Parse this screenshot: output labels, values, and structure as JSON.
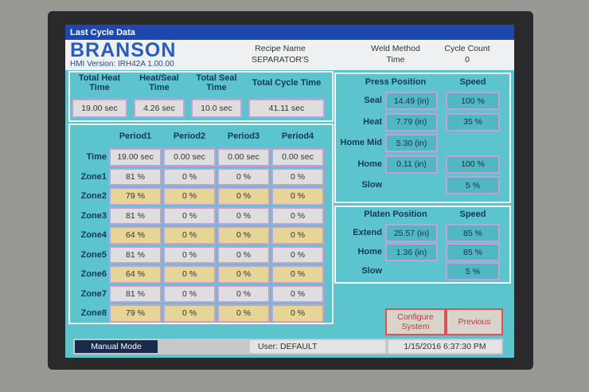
{
  "title_bar": "Last Cycle Data",
  "header": {
    "logo": "BRANSON",
    "hmi_version": "HMI Version: IRH42A 1.00.00",
    "recipe": {
      "label": "Recipe Name",
      "value": "SEPARATOR'S"
    },
    "weld_method": {
      "label": "Weld Method",
      "value": "Time"
    },
    "cycle_count": {
      "label": "Cycle Count",
      "value": "0"
    }
  },
  "totals": [
    {
      "label": "Total Heat Time",
      "value": "19.00 sec"
    },
    {
      "label": "Heat/Seal Time",
      "value": "4.26 sec"
    },
    {
      "label": "Total Seal Time",
      "value": "10.0 sec"
    },
    {
      "label": "Total Cycle Time",
      "value": "41.11 sec"
    }
  ],
  "period_table": {
    "columns": [
      "Period1",
      "Period2",
      "Period3",
      "Period4"
    ],
    "rows": [
      {
        "label": "Time",
        "cells": [
          "19.00 sec",
          "0.00 sec",
          "0.00 sec",
          "0.00 sec"
        ]
      },
      {
        "label": "Zone1",
        "cells": [
          "81 %",
          "0 %",
          "0 %",
          "0 %"
        ]
      },
      {
        "label": "Zone2",
        "cells": [
          "79 %",
          "0 %",
          "0 %",
          "0 %"
        ]
      },
      {
        "label": "Zone3",
        "cells": [
          "81 %",
          "0 %",
          "0 %",
          "0 %"
        ]
      },
      {
        "label": "Zone4",
        "cells": [
          "64 %",
          "0 %",
          "0 %",
          "0 %"
        ]
      },
      {
        "label": "Zone5",
        "cells": [
          "81 %",
          "0 %",
          "0 %",
          "0 %"
        ]
      },
      {
        "label": "Zone6",
        "cells": [
          "64 %",
          "0 %",
          "0 %",
          "0 %"
        ]
      },
      {
        "label": "Zone7",
        "cells": [
          "81 %",
          "0 %",
          "0 %",
          "0 %"
        ]
      },
      {
        "label": "Zone8",
        "cells": [
          "79 %",
          "0 %",
          "0 %",
          "0 %"
        ]
      }
    ]
  },
  "press": {
    "title": "Press Position",
    "speed_title": "Speed",
    "rows": [
      {
        "label": "Seal",
        "position": "14.49 (in)",
        "speed": "100 %"
      },
      {
        "label": "Heat",
        "position": "7.79 (in)",
        "speed": "35 %"
      },
      {
        "label": "Home Mid",
        "position": "5.30 (in)"
      },
      {
        "label": "Home",
        "position": "0.11 (in)",
        "speed": "100 %"
      },
      {
        "label": "Slow",
        "speed": "5 %"
      }
    ]
  },
  "platen": {
    "title": "Platen Position",
    "speed_title": "Speed",
    "rows": [
      {
        "label": "Extend",
        "position": "25.57 (in)",
        "speed": "85 %"
      },
      {
        "label": "Home",
        "position": "1.36 (in)",
        "speed": "85 %"
      },
      {
        "label": "Slow",
        "speed": "5 %"
      }
    ]
  },
  "buttons": {
    "configure": "Configure System",
    "previous": "Previous"
  },
  "status_bar": {
    "mode": "Manual Mode",
    "user": "User:  DEFAULT",
    "datetime": "1/15/2016  6:37:30 PM"
  }
}
